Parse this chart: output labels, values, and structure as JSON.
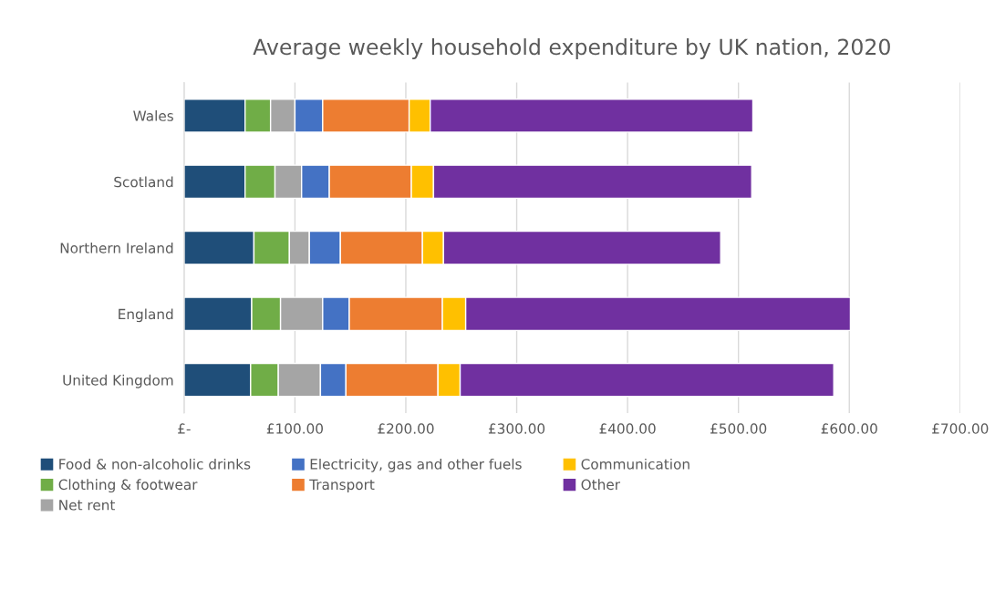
{
  "chart_data": {
    "type": "bar",
    "title": "Average weekly household expenditure by UK nation, 2020",
    "orientation": "horizontal",
    "stacked": true,
    "categories": [
      "Wales",
      "Scotland",
      "Northern Ireland",
      "England",
      "United Kingdom"
    ],
    "series": [
      {
        "name": "Food & non-alcoholic drinks",
        "color": "#1f4e79",
        "values": [
          55,
          55,
          63,
          61,
          60
        ]
      },
      {
        "name": "Clothing & footwear",
        "color": "#70ad47",
        "values": [
          23,
          27,
          32,
          26,
          25
        ]
      },
      {
        "name": "Net rent",
        "color": "#a5a5a5",
        "values": [
          22,
          24,
          18,
          38,
          38
        ]
      },
      {
        "name": "Electricity, gas and other fuels",
        "color": "#4472c4",
        "values": [
          25,
          25,
          28,
          24,
          23
        ]
      },
      {
        "name": "Transport",
        "color": "#ed7d31",
        "values": [
          78,
          74,
          74,
          84,
          83
        ]
      },
      {
        "name": "Communication",
        "color": "#ffc000",
        "values": [
          19,
          20,
          19,
          21,
          20
        ]
      },
      {
        "name": "Other",
        "color": "#7030a0",
        "values": [
          291,
          287,
          250,
          347,
          337
        ]
      }
    ],
    "xlim": [
      0,
      700
    ],
    "xticks": [
      {
        "value": 0,
        "label": "£-"
      },
      {
        "value": 100,
        "label": "£100.00"
      },
      {
        "value": 200,
        "label": "£200.00"
      },
      {
        "value": 300,
        "label": "£300.00"
      },
      {
        "value": 400,
        "label": "£400.00"
      },
      {
        "value": 500,
        "label": "£500.00"
      },
      {
        "value": 600,
        "label": "£600.00"
      },
      {
        "value": 700,
        "label": "£700.00"
      }
    ],
    "grid": "x",
    "legend": "bottom"
  }
}
